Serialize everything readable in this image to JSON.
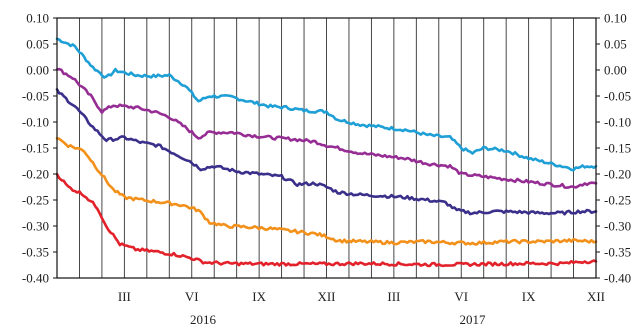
{
  "chart_data": {
    "type": "line",
    "ylim": [
      -0.4,
      0.1
    ],
    "y_ticks": [
      "0.10",
      "0.05",
      "0.00",
      "-0.05",
      "-0.10",
      "-0.15",
      "-0.20",
      "-0.25",
      "-0.30",
      "-0.35",
      "-0.40"
    ],
    "y_axis_both_sides": true,
    "grid": "vertical-monthly",
    "month_count": 24,
    "x_month_labels": [
      {
        "label": "III",
        "month_index": 3
      },
      {
        "label": "VI",
        "month_index": 6
      },
      {
        "label": "IX",
        "month_index": 9
      },
      {
        "label": "XII",
        "month_index": 12
      },
      {
        "label": "III",
        "month_index": 15
      },
      {
        "label": "VI",
        "month_index": 18
      },
      {
        "label": "IX",
        "month_index": 21
      },
      {
        "label": "XII",
        "month_index": 24
      }
    ],
    "x_year_labels": [
      {
        "label": "2016",
        "month_index": 6.5
      },
      {
        "label": "2017",
        "month_index": 18.5
      }
    ],
    "series": [
      {
        "color": "#1e9fd6",
        "points": [
          [
            0,
            0.06
          ],
          [
            0.8,
            0.045
          ],
          [
            1.6,
            0.005
          ],
          [
            2.2,
            -0.015
          ],
          [
            2.6,
            -0.001
          ],
          [
            3.5,
            -0.01
          ],
          [
            4.3,
            -0.012
          ],
          [
            5.0,
            -0.01
          ],
          [
            5.7,
            -0.03
          ],
          [
            6.3,
            -0.06
          ],
          [
            6.8,
            -0.05
          ],
          [
            7.8,
            -0.052
          ],
          [
            8.5,
            -0.06
          ],
          [
            9.5,
            -0.07
          ],
          [
            10.2,
            -0.072
          ],
          [
            11.0,
            -0.078
          ],
          [
            12.0,
            -0.08
          ],
          [
            12.5,
            -0.095
          ],
          [
            13.5,
            -0.105
          ],
          [
            14.5,
            -0.11
          ],
          [
            15.5,
            -0.115
          ],
          [
            16.5,
            -0.125
          ],
          [
            17.5,
            -0.13
          ],
          [
            18.0,
            -0.15
          ],
          [
            18.5,
            -0.16
          ],
          [
            19.0,
            -0.15
          ],
          [
            20.0,
            -0.155
          ],
          [
            21.0,
            -0.17
          ],
          [
            22.0,
            -0.18
          ],
          [
            23.0,
            -0.19
          ],
          [
            23.5,
            -0.185
          ],
          [
            24.0,
            -0.185
          ]
        ]
      },
      {
        "color": "#962d94",
        "points": [
          [
            0,
            0.003
          ],
          [
            0.7,
            -0.015
          ],
          [
            1.5,
            -0.05
          ],
          [
            2.0,
            -0.08
          ],
          [
            2.5,
            -0.068
          ],
          [
            3.5,
            -0.072
          ],
          [
            4.3,
            -0.08
          ],
          [
            5.0,
            -0.09
          ],
          [
            5.7,
            -0.11
          ],
          [
            6.3,
            -0.13
          ],
          [
            6.8,
            -0.12
          ],
          [
            7.8,
            -0.12
          ],
          [
            8.5,
            -0.125
          ],
          [
            9.5,
            -0.13
          ],
          [
            10.5,
            -0.133
          ],
          [
            11.5,
            -0.138
          ],
          [
            12.0,
            -0.145
          ],
          [
            12.5,
            -0.15
          ],
          [
            13.5,
            -0.16
          ],
          [
            14.5,
            -0.165
          ],
          [
            15.5,
            -0.17
          ],
          [
            16.5,
            -0.18
          ],
          [
            17.5,
            -0.185
          ],
          [
            18.0,
            -0.2
          ],
          [
            19.0,
            -0.205
          ],
          [
            20.0,
            -0.21
          ],
          [
            21.0,
            -0.215
          ],
          [
            22.0,
            -0.22
          ],
          [
            23.0,
            -0.225
          ],
          [
            23.5,
            -0.218
          ],
          [
            24.0,
            -0.218
          ]
        ]
      },
      {
        "color": "#3a2f8a",
        "points": [
          [
            0,
            -0.04
          ],
          [
            0.8,
            -0.07
          ],
          [
            1.6,
            -0.11
          ],
          [
            2.2,
            -0.135
          ],
          [
            3.0,
            -0.13
          ],
          [
            3.8,
            -0.14
          ],
          [
            4.5,
            -0.145
          ],
          [
            5.2,
            -0.16
          ],
          [
            5.9,
            -0.175
          ],
          [
            6.4,
            -0.19
          ],
          [
            7.0,
            -0.185
          ],
          [
            8.0,
            -0.195
          ],
          [
            9.0,
            -0.2
          ],
          [
            10.0,
            -0.205
          ],
          [
            10.7,
            -0.22
          ],
          [
            11.5,
            -0.218
          ],
          [
            12.0,
            -0.225
          ],
          [
            12.5,
            -0.235
          ],
          [
            13.5,
            -0.24
          ],
          [
            14.5,
            -0.242
          ],
          [
            15.5,
            -0.245
          ],
          [
            16.5,
            -0.25
          ],
          [
            17.3,
            -0.255
          ],
          [
            17.8,
            -0.27
          ],
          [
            18.5,
            -0.275
          ],
          [
            19.5,
            -0.272
          ],
          [
            20.5,
            -0.273
          ],
          [
            21.5,
            -0.275
          ],
          [
            22.5,
            -0.275
          ],
          [
            23.3,
            -0.272
          ],
          [
            24.0,
            -0.272
          ]
        ]
      },
      {
        "color": "#f39019",
        "points": [
          [
            0,
            -0.13
          ],
          [
            0.5,
            -0.145
          ],
          [
            1.2,
            -0.155
          ],
          [
            1.8,
            -0.19
          ],
          [
            2.5,
            -0.23
          ],
          [
            3.0,
            -0.245
          ],
          [
            3.8,
            -0.25
          ],
          [
            4.8,
            -0.255
          ],
          [
            5.6,
            -0.26
          ],
          [
            6.3,
            -0.27
          ],
          [
            6.8,
            -0.293
          ],
          [
            7.5,
            -0.3
          ],
          [
            8.5,
            -0.302
          ],
          [
            9.5,
            -0.305
          ],
          [
            10.5,
            -0.31
          ],
          [
            11.5,
            -0.315
          ],
          [
            12.0,
            -0.32
          ],
          [
            12.5,
            -0.328
          ],
          [
            13.5,
            -0.33
          ],
          [
            15.0,
            -0.332
          ],
          [
            16.5,
            -0.33
          ],
          [
            17.5,
            -0.332
          ],
          [
            18.5,
            -0.333
          ],
          [
            20.0,
            -0.33
          ],
          [
            21.5,
            -0.33
          ],
          [
            23.0,
            -0.328
          ],
          [
            24.0,
            -0.33
          ]
        ]
      },
      {
        "color": "#e3212a",
        "points": [
          [
            0,
            -0.2
          ],
          [
            0.5,
            -0.225
          ],
          [
            1.2,
            -0.24
          ],
          [
            1.8,
            -0.265
          ],
          [
            2.2,
            -0.3
          ],
          [
            2.8,
            -0.335
          ],
          [
            3.5,
            -0.345
          ],
          [
            4.5,
            -0.35
          ],
          [
            5.3,
            -0.355
          ],
          [
            6.0,
            -0.362
          ],
          [
            6.6,
            -0.37
          ],
          [
            7.5,
            -0.372
          ],
          [
            9.0,
            -0.373
          ],
          [
            10.5,
            -0.373
          ],
          [
            12.0,
            -0.373
          ],
          [
            13.5,
            -0.372
          ],
          [
            15.0,
            -0.373
          ],
          [
            16.5,
            -0.374
          ],
          [
            18.0,
            -0.374
          ],
          [
            19.5,
            -0.373
          ],
          [
            21.0,
            -0.372
          ],
          [
            22.5,
            -0.372
          ],
          [
            23.5,
            -0.368
          ],
          [
            24.0,
            -0.368
          ]
        ]
      }
    ]
  }
}
